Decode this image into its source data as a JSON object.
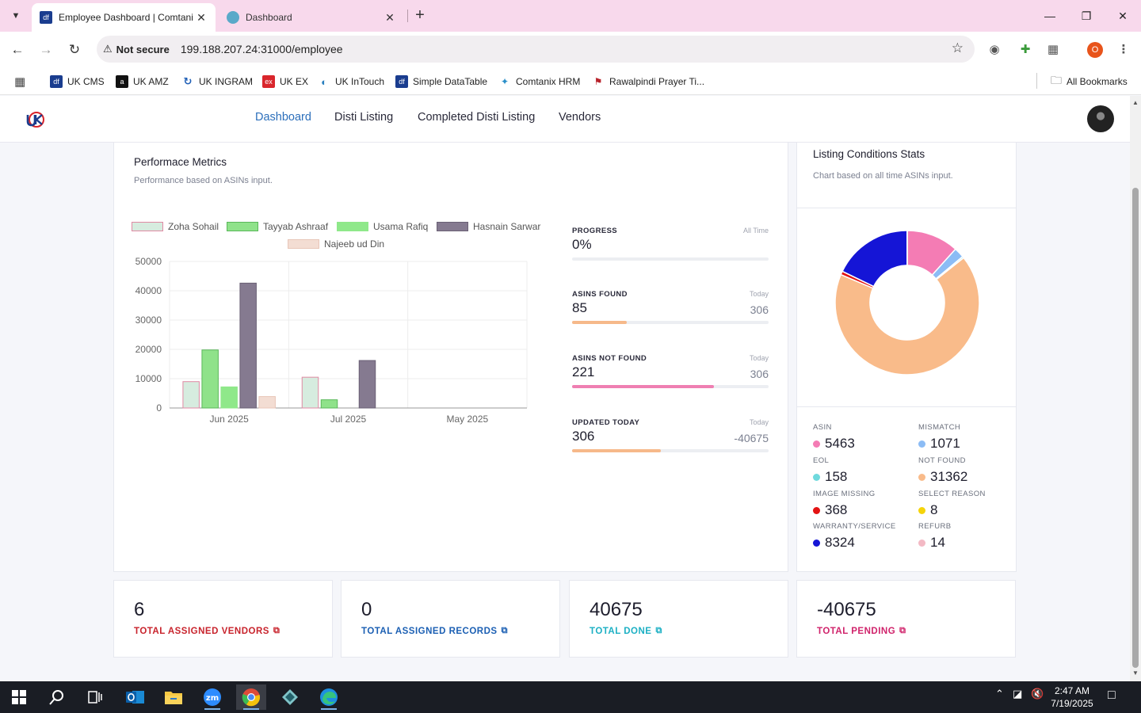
{
  "browser": {
    "tabs": [
      {
        "title": "Employee Dashboard | Comtani",
        "favicon": "df-icon",
        "active": true
      },
      {
        "title": "Dashboard",
        "favicon": "dashboard-icon",
        "active": false
      }
    ],
    "not_secure_label": "Not secure",
    "url": "199.188.207.24:31000/employee",
    "profile_initial": "O",
    "bookmarks": [
      {
        "label": "UK CMS",
        "icon": "df-icon"
      },
      {
        "label": "UK AMZ",
        "icon": "amazon-icon"
      },
      {
        "label": "UK INGRAM",
        "icon": "ingram-icon"
      },
      {
        "label": "UK EX",
        "icon": "ex-icon"
      },
      {
        "label": "UK InTouch",
        "icon": "intouch-icon"
      },
      {
        "label": "Simple DataTable",
        "icon": "df-icon"
      },
      {
        "label": "Comtanix HRM",
        "icon": "hrm-icon"
      },
      {
        "label": "Rawalpindi Prayer Ti...",
        "icon": "prayer-icon"
      }
    ],
    "all_bookmarks_label": "All Bookmarks"
  },
  "nav": {
    "links": [
      "Dashboard",
      "Disti Listing",
      "Completed Disti Listing",
      "Vendors"
    ],
    "active": "Dashboard"
  },
  "performance": {
    "title": "Performace Metrics",
    "subtitle": "Performance based on ASINs input."
  },
  "chart_data": {
    "type": "bar",
    "categories": [
      "Jun 2025",
      "Jul 2025",
      "May 2025"
    ],
    "series": [
      {
        "name": "Zoha Sohail",
        "values": [
          9000,
          10500,
          0
        ],
        "color": "#d6ecdf",
        "border": "#e08aa4"
      },
      {
        "name": "Tayyab Ashraaf",
        "values": [
          19800,
          2800,
          0
        ],
        "color": "#8fe28a",
        "border": "#5ab85a"
      },
      {
        "name": "Usama Rafiq",
        "values": [
          7200,
          0,
          0
        ],
        "color": "#8fe88a",
        "border": "#8fe88a"
      },
      {
        "name": "Hasnain Sarwar",
        "values": [
          42600,
          16200,
          0
        ],
        "color": "#857a90",
        "border": "#6a6075"
      },
      {
        "name": "Najeeb ud Din",
        "values": [
          3900,
          0,
          0
        ],
        "color": "#f3ddd3",
        "border": "#e8c6b8"
      }
    ],
    "yticks": [
      0,
      10000,
      20000,
      30000,
      40000,
      50000
    ],
    "ylim": [
      0,
      50000
    ],
    "grid": true,
    "legend": "top"
  },
  "stats": [
    {
      "label": "PROGRESS",
      "period": "All Time",
      "value": "0%",
      "total": "",
      "fill": 0,
      "color": "#e9ecf1"
    },
    {
      "label": "ASINS FOUND",
      "period": "Today",
      "value": "85",
      "total": "306",
      "fill": 0.28,
      "color": "#f6b98a"
    },
    {
      "label": "ASINS NOT FOUND",
      "period": "Today",
      "value": "221",
      "total": "306",
      "fill": 0.72,
      "color": "#ef7fb2"
    },
    {
      "label": "UPDATED TODAY",
      "period": "Today",
      "value": "306",
      "total": "-40675",
      "fill": 0.45,
      "color": "#f6b98a"
    }
  ],
  "listing_conditions": {
    "title": "Listing Conditions Stats",
    "subtitle": "Chart based on all time ASINs input.",
    "items": [
      {
        "label": "ASIN",
        "value": "5463",
        "color": "#f47cb4"
      },
      {
        "label": "MISMATCH",
        "value": "1071",
        "color": "#8cbcf5"
      },
      {
        "label": "EOL",
        "value": "158",
        "color": "#6fd9dd"
      },
      {
        "label": "NOT FOUND",
        "value": "31362",
        "color": "#f9bb8a"
      },
      {
        "label": "IMAGE MISSING",
        "value": "368",
        "color": "#e31313"
      },
      {
        "label": "SELECT REASON",
        "value": "8",
        "color": "#f5d40a"
      },
      {
        "label": "WARRANTY/SERVICE",
        "value": "8324",
        "color": "#1515d6"
      },
      {
        "label": "REFURB",
        "value": "14",
        "color": "#f3b9c4"
      }
    ]
  },
  "kpis": [
    {
      "value": "6",
      "label": "TOTAL ASSIGNED VENDORS",
      "color": "#c8232c"
    },
    {
      "value": "0",
      "label": "TOTAL ASSIGNED RECORDS",
      "color": "#1b5fb3"
    },
    {
      "value": "40675",
      "label": "TOTAL DONE",
      "color": "#1cb0c4"
    },
    {
      "value": "-40675",
      "label": "TOTAL PENDING",
      "color": "#d0236b"
    }
  ],
  "taskbar": {
    "time": "2:47 AM",
    "date": "7/19/2025",
    "apps": [
      "start-icon",
      "search-icon",
      "task-view-icon",
      "outlook-icon",
      "file-explorer-icon",
      "zoom-icon",
      "chrome-icon",
      "app-icon",
      "edge-icon"
    ]
  }
}
